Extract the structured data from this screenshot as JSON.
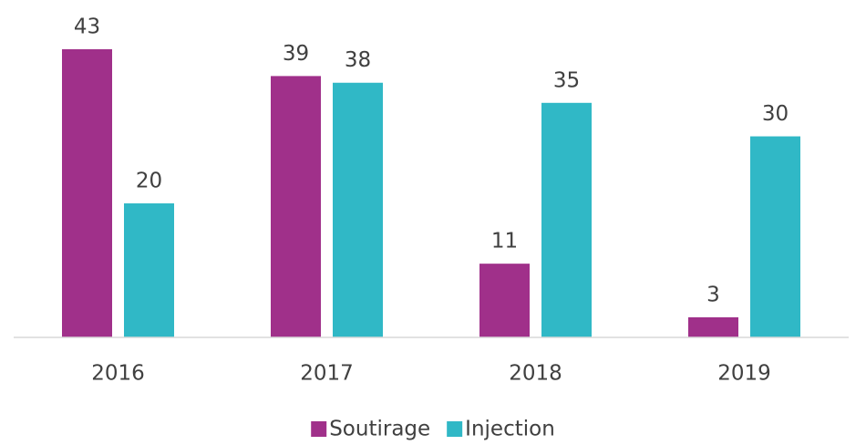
{
  "chart_data": {
    "type": "bar",
    "categories": [
      "2016",
      "2017",
      "2018",
      "2019"
    ],
    "series": [
      {
        "name": "Soutirage",
        "color": "#a0308a",
        "values": [
          43,
          39,
          11,
          3
        ]
      },
      {
        "name": "Injection",
        "color": "#30b8c6",
        "values": [
          20,
          38,
          35,
          30
        ]
      }
    ],
    "legend": "bottom"
  }
}
